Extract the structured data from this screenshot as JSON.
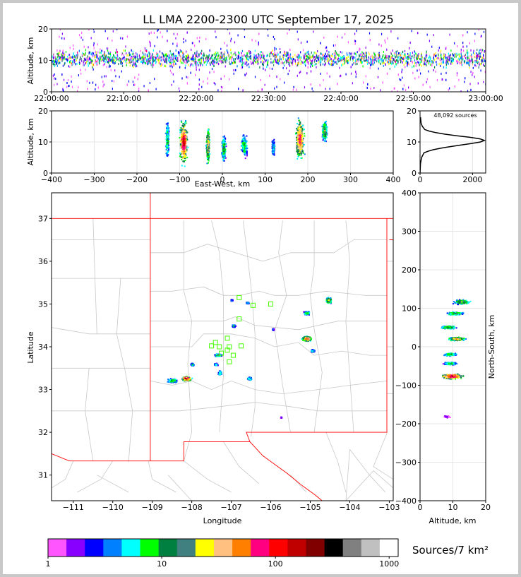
{
  "title": "LL LMA 2200-2300 UTC September 17, 2025",
  "colorbar": {
    "label": "Sources/7 km²",
    "ticks": [
      "1",
      "10",
      "100",
      "1000"
    ],
    "colors": [
      "#ff55ff",
      "#8800ff",
      "#0000ff",
      "#0080ff",
      "#00ffff",
      "#00ff00",
      "#008040",
      "#408080",
      "#ffff00",
      "#ffc080",
      "#ff8000",
      "#ff0080",
      "#ff0000",
      "#c00000",
      "#800000",
      "#000000",
      "#808080",
      "#c0c0c0",
      "#ffffff"
    ]
  },
  "chart_data": [
    {
      "type": "heatmap",
      "panel": "time-altitude",
      "ylabel": "Altitude, km",
      "xlim": [
        "22:00:00",
        "23:00:00"
      ],
      "ylim": [
        0,
        20
      ],
      "x_ticks": [
        "22:00:00",
        "22:10:00",
        "22:20:00",
        "22:30:00",
        "22:40:00",
        "22:50:00",
        "23:00:00"
      ],
      "y_ticks": [
        "0",
        "10",
        "20"
      ],
      "core_altitude_range_km": [
        5,
        14
      ]
    },
    {
      "type": "heatmap",
      "panel": "east-west-altitude",
      "xlabel": "East-West, km",
      "ylabel": "Altitude, km",
      "xlim": [
        -400,
        400
      ],
      "ylim": [
        0,
        20
      ],
      "x_ticks": [
        "−400",
        "−300",
        "−200",
        "−100",
        "0",
        "100",
        "200",
        "300",
        "400"
      ],
      "y_ticks": [
        "0",
        "10",
        "20"
      ],
      "clusters": [
        {
          "x": -130,
          "y": 11,
          "w": 10,
          "h": 14,
          "level": 6
        },
        {
          "x": -92,
          "y": 10,
          "w": 22,
          "h": 16,
          "level": 14
        },
        {
          "x": -35,
          "y": 9,
          "w": 10,
          "h": 14,
          "level": 10
        },
        {
          "x": 2,
          "y": 8,
          "w": 12,
          "h": 10,
          "level": 7
        },
        {
          "x": 50,
          "y": 9,
          "w": 18,
          "h": 9,
          "level": 6
        },
        {
          "x": 118,
          "y": 8.5,
          "w": 8,
          "h": 6,
          "level": 5
        },
        {
          "x": 180,
          "y": 11,
          "w": 26,
          "h": 16,
          "level": 12
        },
        {
          "x": 238,
          "y": 13.5,
          "w": 14,
          "h": 8,
          "level": 8
        }
      ]
    },
    {
      "type": "line",
      "panel": "altitude-histogram",
      "annotation": "48,092 sources",
      "xlim": [
        0,
        2500
      ],
      "ylim": [
        0,
        20
      ],
      "x_ticks": [
        "0",
        "2000"
      ],
      "y_ticks": [
        "0",
        "10",
        "20"
      ],
      "x": [
        0,
        15,
        60,
        150,
        300,
        500,
        800,
        1150,
        1550,
        1950,
        2300,
        2450,
        2280,
        1900,
        1400,
        950,
        600,
        350,
        180,
        90,
        40,
        15
      ],
      "y": [
        0,
        3,
        5,
        6.5,
        7,
        7.5,
        8,
        8.5,
        9,
        9.5,
        10,
        10.5,
        11,
        11.5,
        12,
        12.5,
        13,
        13.5,
        14,
        15,
        16,
        18
      ]
    },
    {
      "type": "heatmap",
      "panel": "plan-view",
      "xlabel": "Longitude",
      "ylabel": "Latitude",
      "xlim": [
        -111.55,
        -102.9
      ],
      "ylim": [
        30.4,
        37.6
      ],
      "x_ticks": [
        "−111",
        "−110",
        "−109",
        "−108",
        "−107",
        "−106",
        "−105",
        "−104",
        "−103"
      ],
      "y_ticks": [
        "31",
        "32",
        "33",
        "34",
        "35",
        "36",
        "37"
      ],
      "clusters": [
        {
          "lon": -108.5,
          "lat": 33.22,
          "w": 0.3,
          "h": 0.12,
          "level": 6
        },
        {
          "lon": -108.15,
          "lat": 33.27,
          "w": 0.3,
          "h": 0.12,
          "level": 14
        },
        {
          "lon": -108.0,
          "lat": 33.6,
          "w": 0.1,
          "h": 0.08,
          "level": 5
        },
        {
          "lon": -107.3,
          "lat": 33.4,
          "w": 0.1,
          "h": 0.12,
          "level": 6
        },
        {
          "lon": -107.35,
          "lat": 33.82,
          "w": 0.2,
          "h": 0.08,
          "level": 7
        },
        {
          "lon": -107.4,
          "lat": 33.6,
          "w": 0.12,
          "h": 0.06,
          "level": 5
        },
        {
          "lon": -106.55,
          "lat": 33.27,
          "w": 0.12,
          "h": 0.08,
          "level": 6
        },
        {
          "lon": -106.95,
          "lat": 34.5,
          "w": 0.12,
          "h": 0.08,
          "level": 5
        },
        {
          "lon": -107.0,
          "lat": 35.1,
          "w": 0.06,
          "h": 0.05,
          "level": 3
        },
        {
          "lon": -106.6,
          "lat": 35.04,
          "w": 0.1,
          "h": 0.05,
          "level": 4
        },
        {
          "lon": -105.1,
          "lat": 34.2,
          "w": 0.28,
          "h": 0.14,
          "level": 12
        },
        {
          "lon": -104.95,
          "lat": 33.92,
          "w": 0.12,
          "h": 0.08,
          "level": 5
        },
        {
          "lon": -105.1,
          "lat": 34.8,
          "w": 0.2,
          "h": 0.1,
          "level": 6
        },
        {
          "lon": -104.55,
          "lat": 35.1,
          "w": 0.18,
          "h": 0.16,
          "level": 9
        },
        {
          "lon": -105.95,
          "lat": 34.42,
          "w": 0.06,
          "h": 0.05,
          "level": 3
        },
        {
          "lon": -105.75,
          "lat": 32.36,
          "w": 0.04,
          "h": 0.03,
          "level": 1
        }
      ],
      "stations": [
        [
          -106.8,
          35.15
        ],
        [
          -106.45,
          34.97
        ],
        [
          -106.0,
          35.0
        ],
        [
          -106.8,
          34.65
        ],
        [
          -107.1,
          34.2
        ],
        [
          -107.4,
          34.1
        ],
        [
          -107.5,
          34.02
        ],
        [
          -107.3,
          34.0
        ],
        [
          -107.05,
          34.0
        ],
        [
          -106.75,
          34.02
        ],
        [
          -107.1,
          33.92
        ],
        [
          -107.25,
          33.85
        ],
        [
          -106.95,
          33.8
        ],
        [
          -107.05,
          33.65
        ]
      ]
    },
    {
      "type": "heatmap",
      "panel": "altitude-north-south",
      "xlabel": "Altitude, km",
      "ylabel": "North-South, km",
      "xlim": [
        0,
        20
      ],
      "ylim": [
        -400,
        400
      ],
      "x_ticks": [
        "0",
        "10",
        "20"
      ],
      "y_ticks": [
        "−400",
        "−300",
        "−200",
        "−100",
        "0",
        "100",
        "200",
        "300",
        "400"
      ],
      "clusters": [
        {
          "alt": 12.5,
          "ns": 118,
          "w": 3,
          "h": 14,
          "level": 8
        },
        {
          "alt": 10.5,
          "ns": 88,
          "w": 3,
          "h": 10,
          "level": 7
        },
        {
          "alt": 8.5,
          "ns": 52,
          "w": 3,
          "h": 10,
          "level": 7
        },
        {
          "alt": 11,
          "ns": 22,
          "w": 3,
          "h": 12,
          "level": 10
        },
        {
          "alt": 9,
          "ns": -18,
          "w": 2.5,
          "h": 10,
          "level": 6
        },
        {
          "alt": 9,
          "ns": -42,
          "w": 2.5,
          "h": 8,
          "level": 6
        },
        {
          "alt": 9.5,
          "ns": -75,
          "w": 4,
          "h": 16,
          "level": 14
        },
        {
          "alt": 8,
          "ns": -180,
          "w": 1,
          "h": 6,
          "level": 1
        }
      ]
    }
  ]
}
